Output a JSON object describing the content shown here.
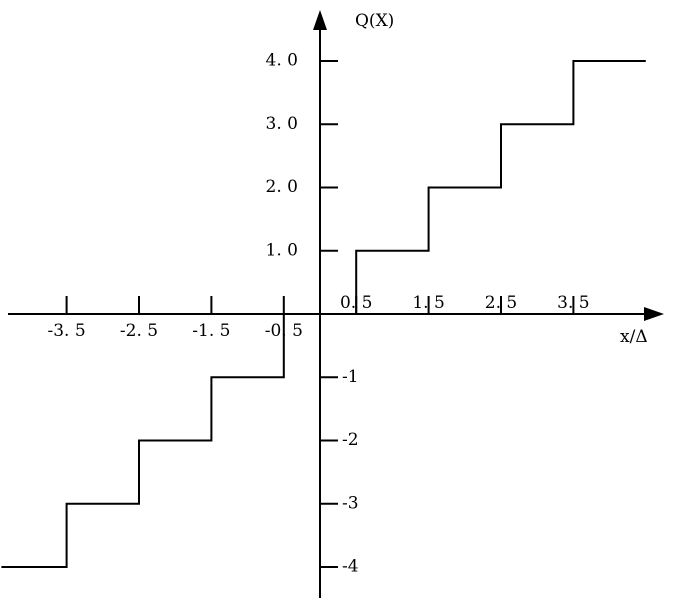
{
  "chart_data": {
    "type": "line",
    "step": "mid-riser staircase",
    "xlabel": "x/Δ",
    "ylabel": "Q(X)",
    "xlim": [
      -4.4,
      4.5
    ],
    "ylim": [
      -4.5,
      4.8
    ],
    "grid": false,
    "x_tick_values": [
      -3.5,
      -2.5,
      -1.5,
      -0.5,
      0.5,
      1.5,
      2.5,
      3.5
    ],
    "x_tick_labels": [
      "-3. 5",
      "-2. 5",
      "-1. 5",
      "-0. 5",
      "0. 5",
      "1. 5",
      "2. 5",
      "3. 5"
    ],
    "y_tick_values": [
      4,
      3,
      2,
      1,
      -1,
      -2,
      -3,
      -4
    ],
    "y_tick_labels": [
      "4. 0",
      "3. 0",
      "2. 0",
      "1. 0",
      "-1",
      "-2",
      "-3",
      "-4"
    ],
    "series": [
      {
        "points": [
          [
            -4.4,
            -4
          ],
          [
            -3.5,
            -4
          ],
          [
            -3.5,
            -3
          ],
          [
            -2.5,
            -3
          ],
          [
            -2.5,
            -2
          ],
          [
            -1.5,
            -2
          ],
          [
            -1.5,
            -1
          ],
          [
            -0.5,
            -1
          ],
          [
            -0.5,
            0
          ],
          [
            0.5,
            0
          ],
          [
            0.5,
            1
          ],
          [
            1.5,
            1
          ],
          [
            1.5,
            2
          ],
          [
            2.5,
            2
          ],
          [
            2.5,
            3
          ],
          [
            3.5,
            3
          ],
          [
            3.5,
            4
          ],
          [
            4.5,
            4
          ]
        ]
      }
    ]
  }
}
